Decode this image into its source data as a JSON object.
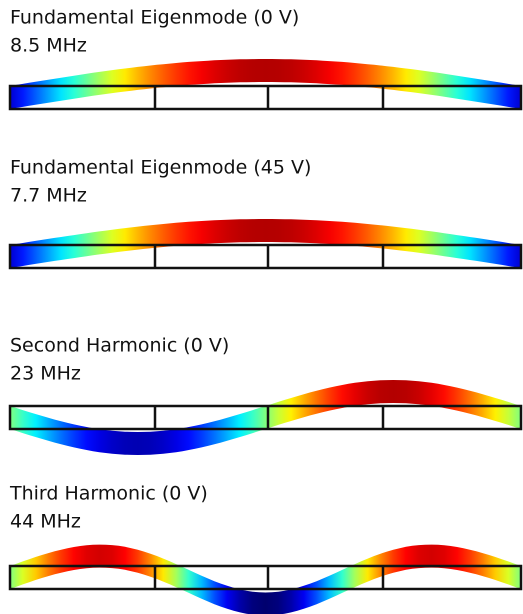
{
  "panels": [
    {
      "title": "Fundamental Eigenmode (0 V)",
      "frequency": "8.5 MHz"
    },
    {
      "title": "Fundamental Eigenmode (45 V)",
      "frequency": "7.7 MHz"
    },
    {
      "title": "Second Harmonic (0 V)",
      "frequency": "23 MHz"
    },
    {
      "title": "Third Harmonic (0 V)",
      "frequency": "44 MHz"
    }
  ]
}
